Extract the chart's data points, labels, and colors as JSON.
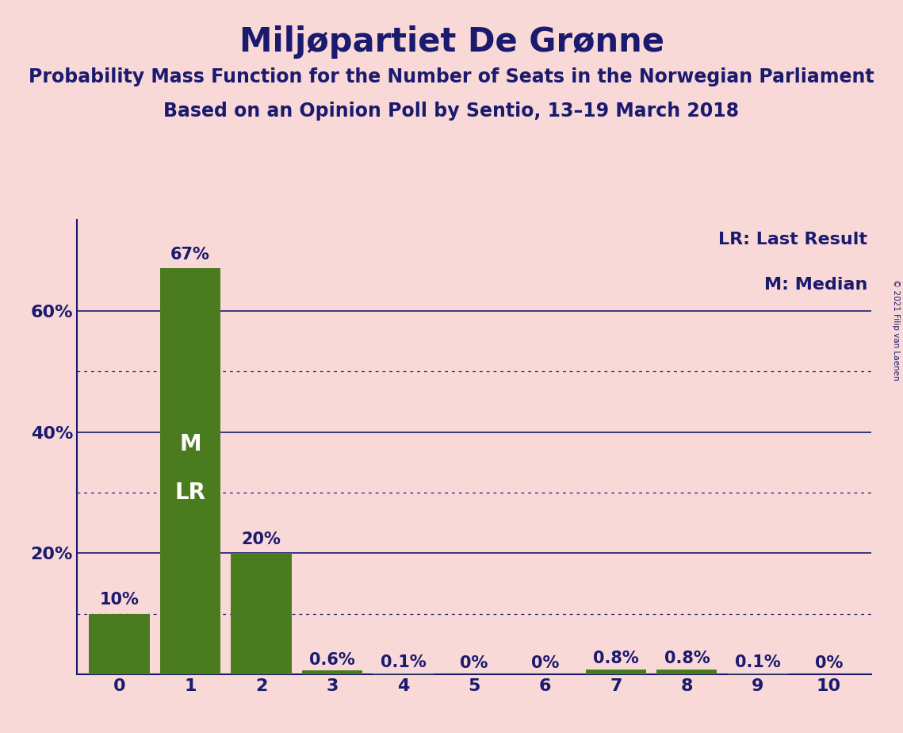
{
  "title": "Miljøpartiet De Grønne",
  "subtitle1": "Probability Mass Function for the Number of Seats in the Norwegian Parliament",
  "subtitle2": "Based on an Opinion Poll by Sentio, 13–19 March 2018",
  "copyright": "© 2021 Filip van Laenen",
  "categories": [
    0,
    1,
    2,
    3,
    4,
    5,
    6,
    7,
    8,
    9,
    10
  ],
  "values": [
    10.0,
    67.0,
    20.0,
    0.6,
    0.1,
    0.0,
    0.0,
    0.8,
    0.8,
    0.1,
    0.0
  ],
  "labels": [
    "10%",
    "67%",
    "20%",
    "0.6%",
    "0.1%",
    "0%",
    "0%",
    "0.8%",
    "0.8%",
    "0.1%",
    "0%"
  ],
  "bar_color": "#4a7c1f",
  "background_color": "#f9d8d8",
  "text_color": "#1a1a6e",
  "white_text": "#ffffff",
  "median_bar": 1,
  "lr_bar": 1,
  "legend_lr": "LR: Last Result",
  "legend_m": "M: Median",
  "ylim": [
    0,
    75
  ],
  "solid_grid": [
    20,
    40,
    60
  ],
  "dotted_grid": [
    10,
    30,
    50
  ],
  "title_fontsize": 30,
  "subtitle_fontsize": 17,
  "tick_fontsize": 16,
  "legend_fontsize": 16,
  "annotation_fontsize": 15,
  "m_fontsize": 20,
  "lr_fontsize": 20
}
